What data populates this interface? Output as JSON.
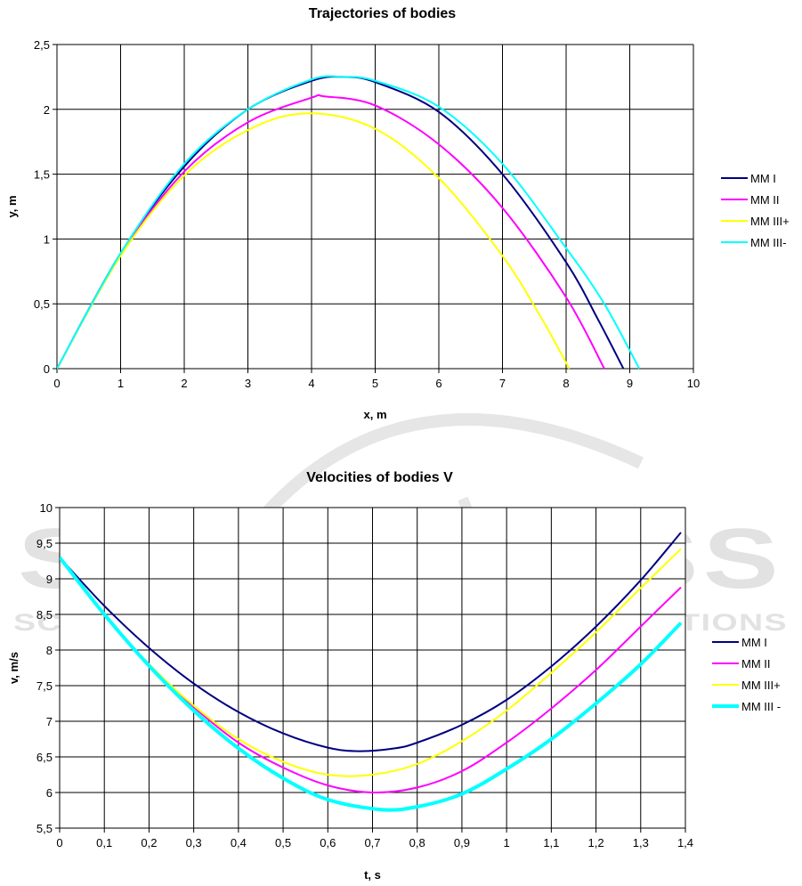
{
  "watermark": {
    "brand": "SCITEPRESS",
    "tagline": "SCIENCE AND TECHNOLOGY PUBLICATIONS"
  },
  "chart_data": [
    {
      "type": "line",
      "title": "Trajectories of bodies",
      "xlabel": "x, m",
      "ylabel": "y, m",
      "xlim": [
        0,
        10
      ],
      "ylim": [
        0,
        2.5
      ],
      "xticks": [
        0,
        1,
        2,
        3,
        4,
        5,
        6,
        7,
        8,
        9,
        10
      ],
      "xtick_labels": [
        "0",
        "1",
        "2",
        "3",
        "4",
        "5",
        "6",
        "7",
        "8",
        "9",
        "10"
      ],
      "yticks": [
        0,
        0.5,
        1,
        1.5,
        2,
        2.5
      ],
      "ytick_labels": [
        "0",
        "0,5",
        "1",
        "1,5",
        "2",
        "2,5"
      ],
      "grid": true,
      "legend_position": "right",
      "series": [
        {
          "name": "MM I",
          "color": "#000080",
          "x": [
            0,
            1,
            2,
            3,
            4,
            4.5,
            5,
            6,
            7,
            8,
            8.5,
            8.9
          ],
          "y": [
            0,
            0.89,
            1.56,
            2.0,
            2.22,
            2.25,
            2.21,
            1.98,
            1.5,
            0.82,
            0.38,
            0
          ]
        },
        {
          "name": "MM II",
          "color": "#ff00ff",
          "x": [
            0,
            1,
            2,
            3,
            4,
            4.2,
            5,
            6,
            7,
            8,
            8.6
          ],
          "y": [
            0,
            0.88,
            1.52,
            1.9,
            2.09,
            2.1,
            2.03,
            1.73,
            1.24,
            0.55,
            0
          ]
        },
        {
          "name": "MM III+",
          "color": "#ffff00",
          "x": [
            0,
            1,
            2,
            3,
            3.95,
            5,
            6,
            7,
            7.6,
            8.05
          ],
          "y": [
            0,
            0.87,
            1.49,
            1.84,
            1.97,
            1.85,
            1.47,
            0.87,
            0.4,
            0
          ]
        },
        {
          "name": "MM III-",
          "color": "#00ffff",
          "x": [
            0,
            1,
            2,
            3,
            4,
            4.5,
            5,
            6,
            7,
            8,
            8.6,
            9.15
          ],
          "y": [
            0,
            0.89,
            1.58,
            2.0,
            2.23,
            2.25,
            2.22,
            2.02,
            1.58,
            0.93,
            0.5,
            0
          ]
        }
      ]
    },
    {
      "type": "line",
      "title": "Velocities of bodies V",
      "xlabel": "t, s",
      "ylabel": "v, m/s",
      "xlim": [
        0,
        1.4
      ],
      "ylim": [
        5.5,
        10
      ],
      "xticks": [
        0,
        0.1,
        0.2,
        0.3,
        0.4,
        0.5,
        0.6,
        0.7,
        0.8,
        0.9,
        1.0,
        1.1,
        1.2,
        1.3,
        1.4
      ],
      "xtick_labels": [
        "0",
        "0,1",
        "0,2",
        "0,3",
        "0,4",
        "0,5",
        "0,6",
        "0,7",
        "0,8",
        "0,9",
        "1",
        "1,1",
        "1,2",
        "1,3",
        "1,4"
      ],
      "yticks": [
        5.5,
        6,
        6.5,
        7,
        7.5,
        8,
        8.5,
        9,
        9.5,
        10
      ],
      "ytick_labels": [
        "5,5",
        "6",
        "6,5",
        "7",
        "7,5",
        "8",
        "8,5",
        "9",
        "9,5",
        "10"
      ],
      "grid": true,
      "legend_position": "right",
      "series": [
        {
          "name": "MM   I",
          "color": "#000080",
          "x": [
            0,
            0.1,
            0.2,
            0.3,
            0.4,
            0.5,
            0.6,
            0.67,
            0.75,
            0.8,
            0.9,
            1.0,
            1.1,
            1.2,
            1.3,
            1.39
          ],
          "y": [
            9.3,
            8.62,
            8.03,
            7.53,
            7.13,
            6.83,
            6.63,
            6.58,
            6.62,
            6.7,
            6.95,
            7.3,
            7.77,
            8.33,
            8.98,
            9.65
          ]
        },
        {
          "name": "MM  II",
          "color": "#ff00ff",
          "x": [
            0,
            0.1,
            0.2,
            0.3,
            0.4,
            0.5,
            0.6,
            0.7,
            0.8,
            0.9,
            1.0,
            1.1,
            1.2,
            1.3,
            1.39
          ],
          "y": [
            9.3,
            8.5,
            7.8,
            7.2,
            6.7,
            6.35,
            6.1,
            6.0,
            6.07,
            6.3,
            6.7,
            7.18,
            7.72,
            8.33,
            8.88
          ]
        },
        {
          "name": "MM  III+",
          "color": "#ffff00",
          "x": [
            0,
            0.1,
            0.2,
            0.3,
            0.4,
            0.5,
            0.6,
            0.7,
            0.8,
            0.9,
            1.0,
            1.1,
            1.2,
            1.3,
            1.39
          ],
          "y": [
            9.3,
            8.5,
            7.8,
            7.22,
            6.75,
            6.43,
            6.25,
            6.25,
            6.4,
            6.72,
            7.15,
            7.68,
            8.25,
            8.87,
            9.42
          ]
        },
        {
          "name": "MM   III -",
          "color": "#00ffff",
          "x": [
            0,
            0.1,
            0.2,
            0.3,
            0.4,
            0.5,
            0.6,
            0.72,
            0.8,
            0.9,
            1.0,
            1.1,
            1.2,
            1.3,
            1.39
          ],
          "y": [
            9.3,
            8.5,
            7.78,
            7.15,
            6.62,
            6.2,
            5.9,
            5.76,
            5.8,
            5.98,
            6.33,
            6.75,
            7.25,
            7.8,
            8.38
          ]
        }
      ]
    }
  ]
}
